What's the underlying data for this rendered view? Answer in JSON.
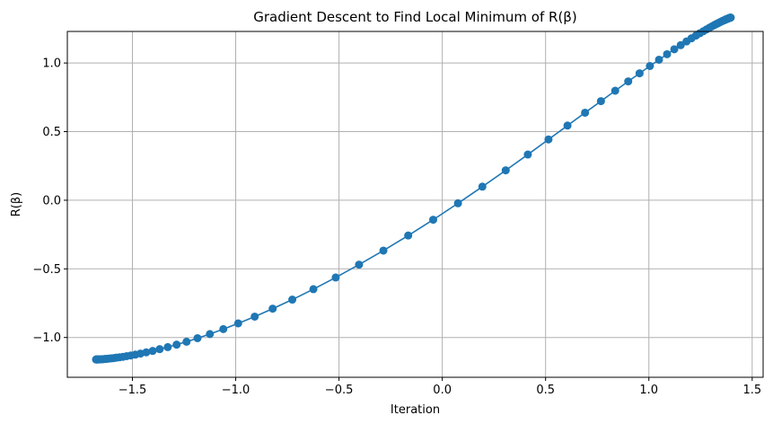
{
  "chart_data": {
    "type": "line",
    "title": "Gradient Descent to Find Local Minimum of R(β)",
    "xlabel": "Iteration",
    "ylabel": "R(β)",
    "xlim": [
      -1.815,
      1.553
    ],
    "ylim": [
      -1.29,
      1.23
    ],
    "grid": true,
    "color": "#1f77b4",
    "x_ticks": [
      -1.5,
      -1.0,
      -0.5,
      0.0,
      0.5,
      1.0,
      1.5
    ],
    "x_tick_labels": [
      "−1.5",
      "−1.0",
      "−0.5",
      "0.0",
      "0.5",
      "1.0",
      "1.5"
    ],
    "y_ticks": [
      -1.0,
      -0.5,
      0.0,
      0.5,
      1.0
    ],
    "y_tick_labels": [
      "−1.0",
      "−0.5",
      "0.0",
      "0.5",
      "1.0"
    ],
    "series": [
      {
        "marker": "circle",
        "x": [
          -1.676,
          -1.675,
          -1.674,
          -1.673,
          -1.672,
          -1.671,
          -1.669,
          -1.667,
          -1.665,
          -1.662,
          -1.659,
          -1.655,
          -1.651,
          -1.646,
          -1.641,
          -1.635,
          -1.628,
          -1.62,
          -1.611,
          -1.601,
          -1.59,
          -1.577,
          -1.562,
          -1.546,
          -1.528,
          -1.508,
          -1.486,
          -1.461,
          -1.433,
          -1.402,
          -1.368,
          -1.329,
          -1.286,
          -1.238,
          -1.185,
          -1.125,
          -1.06,
          -0.988,
          -0.908,
          -0.821,
          -0.726,
          -0.624,
          -0.516,
          -0.403,
          -0.285,
          -0.165,
          -0.044,
          0.076,
          0.194,
          0.307,
          0.414,
          0.514,
          0.606,
          0.691,
          0.768,
          0.837,
          0.9,
          0.955,
          1.005,
          1.049,
          1.088,
          1.123,
          1.154,
          1.182,
          1.206,
          1.228,
          1.247,
          1.264,
          1.279,
          1.292,
          1.304,
          1.315,
          1.324,
          1.332,
          1.34,
          1.346,
          1.352,
          1.357,
          1.362,
          1.366,
          1.37,
          1.373,
          1.376,
          1.379,
          1.381,
          1.383,
          1.385,
          1.387,
          1.388,
          1.39,
          1.391,
          1.392,
          1.393,
          1.394,
          1.395,
          1.395,
          1.396
        ],
        "y": [
          -1.16,
          -1.16,
          -1.16,
          -1.16,
          -1.16,
          -1.16,
          -1.16,
          -1.16,
          -1.16,
          -1.16,
          -1.159,
          -1.159,
          -1.159,
          -1.158,
          -1.158,
          -1.157,
          -1.156,
          -1.155,
          -1.153,
          -1.152,
          -1.15,
          -1.147,
          -1.144,
          -1.141,
          -1.136,
          -1.131,
          -1.125,
          -1.117,
          -1.108,
          -1.098,
          -1.085,
          -1.07,
          -1.052,
          -1.031,
          -1.005,
          -0.975,
          -0.939,
          -0.897,
          -0.848,
          -0.79,
          -0.724,
          -0.648,
          -0.563,
          -0.469,
          -0.367,
          -0.257,
          -0.142,
          -0.022,
          0.099,
          0.218,
          0.333,
          0.443,
          0.544,
          0.638,
          0.722,
          0.798,
          0.866,
          0.925,
          0.978,
          1.024,
          1.064,
          1.1,
          1.13,
          1.157,
          1.18,
          1.2,
          1.217,
          1.232,
          1.245,
          1.256,
          1.266,
          1.275,
          1.282,
          1.288,
          1.294,
          1.299,
          1.303,
          1.307,
          1.31,
          1.313,
          1.315,
          1.318,
          1.32,
          1.321,
          1.323,
          1.324,
          1.325,
          1.326,
          1.327,
          1.328,
          1.329,
          1.329,
          1.33,
          1.33,
          1.331,
          1.331,
          1.331
        ]
      }
    ]
  }
}
